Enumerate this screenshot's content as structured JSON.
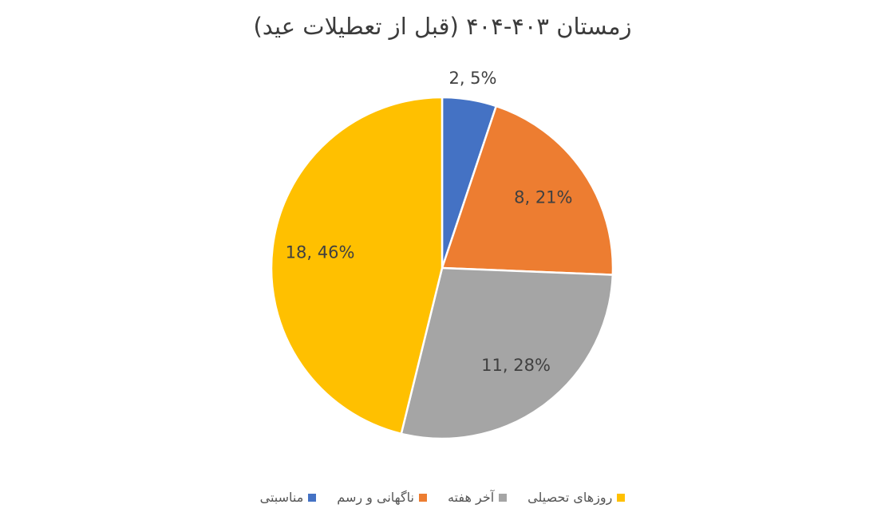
{
  "chart_data": {
    "type": "pie",
    "title": "زمستان ۴۰۳-۴۰۴ (قبل از تعطیلات عید)",
    "categories": [
      "مناسبتی",
      "ناگهانی و رسم",
      "آخر هفته",
      "روزهای تحصیلی"
    ],
    "values": [
      2,
      8,
      11,
      18
    ],
    "data_labels": [
      "2, 5%",
      "8, 21%",
      "11, 28%",
      "18, 46%"
    ],
    "colors": [
      "#4472C4",
      "#ED7D31",
      "#A5A5A5",
      "#FFC000"
    ],
    "legend_position": "bottom",
    "start_angle_deg": 0,
    "direction": "clockwise"
  }
}
